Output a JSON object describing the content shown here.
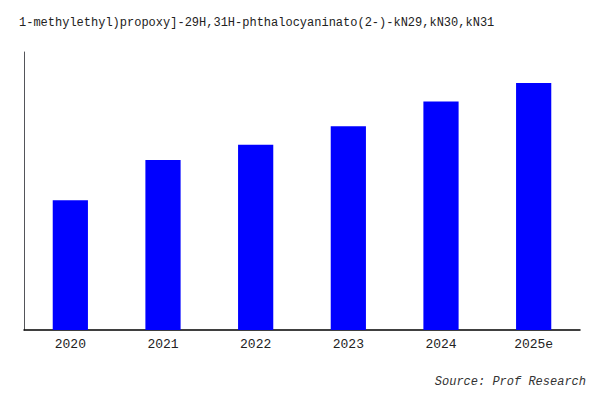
{
  "chart_data": {
    "type": "bar",
    "title": "1-methylethyl)propoxy]-29H,31H-phthalocyaninato(2-)-kN29,kN30,kN31",
    "annotation": "Source: Prof Research",
    "categories": [
      "2020",
      "2021",
      "2022",
      "2023",
      "2024",
      "2025e"
    ],
    "values": [
      42,
      55,
      60,
      66,
      74,
      80
    ],
    "color": "#0000FF",
    "ylim": [
      0,
      90
    ],
    "yticks": [],
    "grid": false,
    "tick_labels": "x"
  }
}
